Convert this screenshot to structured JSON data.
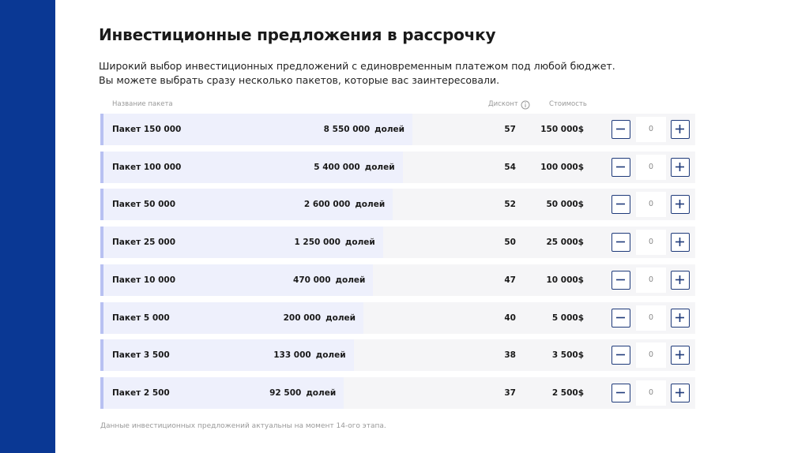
{
  "header": {
    "title": "Инвестиционные предложения в рассрочку",
    "subtitle": [
      "Широкий выбор инвестиционных предложений с единовременным платежом под любой бюджет.",
      "Вы можете выбрать сразу несколько пакетов, которые вас заинтересовали."
    ]
  },
  "table": {
    "columns": {
      "name": "Название пакета",
      "discount": "Дисконт",
      "price": "Стоимость"
    },
    "rows": [
      {
        "name": "Пакет 150 000",
        "shares": "8 550 000",
        "unit": "долей",
        "discount": "57",
        "price": "150 000$",
        "quantity": "0"
      },
      {
        "name": "Пакет 100 000",
        "shares": "5 400 000",
        "unit": "долей",
        "discount": "54",
        "price": "100 000$",
        "quantity": "0"
      },
      {
        "name": "Пакет 50 000",
        "shares": "2 600 000",
        "unit": "долей",
        "discount": "52",
        "price": "50 000$",
        "quantity": "0"
      },
      {
        "name": "Пакет 25 000",
        "shares": "1 250 000",
        "unit": "долей",
        "discount": "50",
        "price": "25 000$",
        "quantity": "0"
      },
      {
        "name": "Пакет 10 000",
        "shares": "470 000",
        "unit": "долей",
        "discount": "47",
        "price": "10 000$",
        "quantity": "0"
      },
      {
        "name": "Пакет 5 000",
        "shares": "200 000",
        "unit": "долей",
        "discount": "40",
        "price": "5 000$",
        "quantity": "0"
      },
      {
        "name": "Пакет 3 500",
        "shares": "133 000",
        "unit": "долей",
        "discount": "38",
        "price": "3 500$",
        "quantity": "0"
      },
      {
        "name": "Пакет 2 500",
        "shares": "92 500",
        "unit": "долей",
        "discount": "37",
        "price": "2 500$",
        "quantity": "0"
      }
    ]
  },
  "footer": "Данные инвестиционных предложений актуальны на момент 14-ого этапа."
}
